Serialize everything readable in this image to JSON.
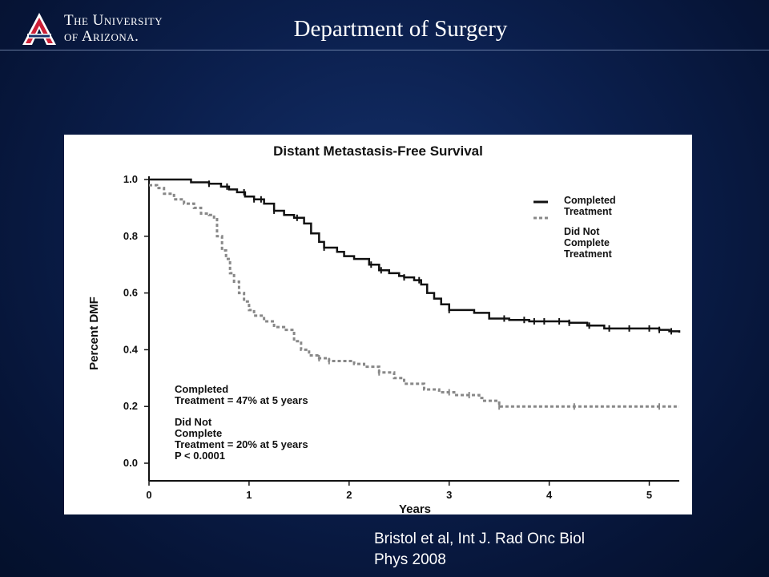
{
  "header": {
    "logo_line1": "The University",
    "logo_line2": "of Arizona.",
    "title": "Department of Surgery"
  },
  "citation": {
    "line1": "Bristol et al, Int J. Rad Onc Biol",
    "line2": "Phys 2008"
  },
  "colors": {
    "background": "#0b1f4d",
    "logo_red": "#cc1f36",
    "completed_line": "#111111",
    "not_completed_line": "#888888"
  },
  "chart_data": {
    "type": "line",
    "title": "Distant Metastasis-Free Survival",
    "xlabel": "Years",
    "ylabel": "Percent DMF",
    "xlim": [
      0,
      5.3
    ],
    "ylim": [
      0,
      1.0
    ],
    "x_ticks": [
      "0",
      "1",
      "2",
      "3",
      "4",
      "5"
    ],
    "y_ticks": [
      "0.0",
      "0.2",
      "0.4",
      "0.6",
      "0.8",
      "1.0"
    ],
    "legend_position": "top-right",
    "legend": [
      {
        "label_line1": "Completed",
        "label_line2": "Treatment",
        "label_line3": ""
      },
      {
        "label_line1": "Did Not",
        "label_line2": "Complete",
        "label_line3": "Treatment"
      }
    ],
    "annotation": {
      "line1": "Completed",
      "line2": "Treatment = 47%  at 5 years",
      "line3": "Did Not",
      "line4": "Complete",
      "line5": "Treatment = 20% at 5 years",
      "line6": "P < 0.0001"
    },
    "series": [
      {
        "style": "solid",
        "x": [
          0,
          0.42,
          0.6,
          0.72,
          0.8,
          0.88,
          0.96,
          1.05,
          1.15,
          1.25,
          1.35,
          1.45,
          1.55,
          1.62,
          1.7,
          1.75,
          1.88,
          1.95,
          2.05,
          2.2,
          2.3,
          2.4,
          2.5,
          2.55,
          2.65,
          2.72,
          2.78,
          2.85,
          2.92,
          3.0,
          3.25,
          3.4,
          3.6,
          3.8,
          4.0,
          4.2,
          4.38,
          4.55,
          4.75,
          4.95,
          5.1,
          5.2,
          5.3
        ],
        "y": [
          1.0,
          0.99,
          0.985,
          0.975,
          0.965,
          0.955,
          0.94,
          0.93,
          0.915,
          0.89,
          0.875,
          0.865,
          0.845,
          0.81,
          0.78,
          0.76,
          0.745,
          0.73,
          0.72,
          0.7,
          0.68,
          0.67,
          0.66,
          0.655,
          0.645,
          0.63,
          0.6,
          0.58,
          0.56,
          0.54,
          0.53,
          0.51,
          0.505,
          0.5,
          0.5,
          0.495,
          0.485,
          0.475,
          0.475,
          0.475,
          0.47,
          0.465,
          0.46
        ],
        "censor_x": [
          0.6,
          0.78,
          0.95,
          1.05,
          1.12,
          1.25,
          1.48,
          1.75,
          2.22,
          2.32,
          2.55,
          2.7,
          3.0,
          3.55,
          3.75,
          3.85,
          3.95,
          4.1,
          4.2,
          4.4,
          4.6,
          4.8,
          5.0,
          5.1,
          5.22
        ]
      },
      {
        "style": "dashed",
        "x": [
          0,
          0.08,
          0.15,
          0.25,
          0.35,
          0.45,
          0.52,
          0.6,
          0.65,
          0.68,
          0.73,
          0.77,
          0.81,
          0.85,
          0.9,
          0.95,
          1.0,
          1.05,
          1.15,
          1.25,
          1.35,
          1.45,
          1.52,
          1.6,
          1.7,
          1.8,
          2.05,
          2.15,
          2.3,
          2.45,
          2.55,
          2.75,
          2.9,
          3.05,
          3.3,
          3.35,
          3.5,
          4.0,
          5.3
        ],
        "y": [
          0.98,
          0.97,
          0.95,
          0.93,
          0.915,
          0.9,
          0.88,
          0.875,
          0.86,
          0.8,
          0.75,
          0.72,
          0.67,
          0.64,
          0.6,
          0.57,
          0.54,
          0.52,
          0.5,
          0.48,
          0.47,
          0.43,
          0.4,
          0.38,
          0.37,
          0.36,
          0.35,
          0.34,
          0.32,
          0.3,
          0.28,
          0.26,
          0.25,
          0.24,
          0.23,
          0.22,
          0.2,
          0.2,
          0.2
        ],
        "censor_x": [
          1.7,
          1.8,
          2.3,
          3.0,
          3.2,
          3.5,
          4.25,
          5.1
        ]
      }
    ]
  }
}
